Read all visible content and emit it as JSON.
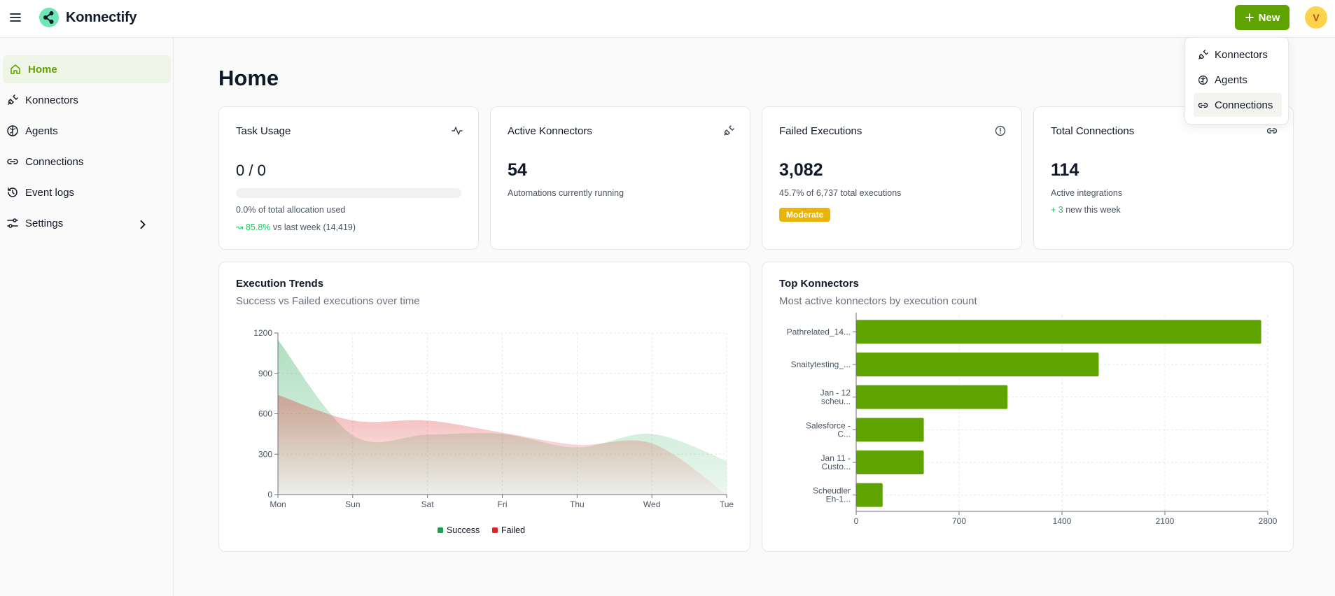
{
  "app": {
    "name": "Konnectify",
    "new_label": "New",
    "avatar_initial": "V"
  },
  "sidebar": {
    "items": [
      {
        "label": "Home",
        "icon": "home-icon"
      },
      {
        "label": "Konnectors",
        "icon": "plug-icon"
      },
      {
        "label": "Agents",
        "icon": "brain-icon"
      },
      {
        "label": "Connections",
        "icon": "link-icon"
      },
      {
        "label": "Event logs",
        "icon": "history-icon"
      },
      {
        "label": "Settings",
        "icon": "settings-icon"
      }
    ]
  },
  "page": {
    "title": "Home"
  },
  "dropdown": {
    "items": [
      "Konnectors",
      "Agents",
      "Connections"
    ]
  },
  "cards": {
    "task_usage": {
      "title": "Task Usage",
      "value": "0 / 0",
      "sub": "0.0% of total allocation used",
      "progress_percent": 0,
      "trend_value": "85.8%",
      "trend_text": "vs last week (14,419)"
    },
    "active_konnectors": {
      "title": "Active Konnectors",
      "value": "54",
      "sub": "Automations currently running"
    },
    "failed_executions": {
      "title": "Failed Executions",
      "value": "3,082",
      "sub": "45.7% of 6,737 total executions",
      "badge": "Moderate"
    },
    "total_connections": {
      "title": "Total Connections",
      "value": "114",
      "sub": "Active integrations",
      "new_prefix": "+ 3",
      "new_text": "new this week"
    }
  },
  "colors": {
    "accent": "#5fa300",
    "success": "#16a34a",
    "failed": "#dc2626",
    "badge": "#eab308"
  },
  "chart_data": [
    {
      "type": "area",
      "title": "Execution Trends",
      "subtitle": "Success vs Failed executions over time",
      "categories": [
        "Mon",
        "Sun",
        "Sat",
        "Fri",
        "Thu",
        "Wed",
        "Tue"
      ],
      "ylim": [
        0,
        1200
      ],
      "yticks": [
        0,
        300,
        600,
        900,
        1200
      ],
      "series": [
        {
          "name": "Success",
          "values": [
            1150,
            440,
            445,
            450,
            350,
            450,
            250
          ]
        },
        {
          "name": "Failed",
          "values": [
            740,
            550,
            550,
            460,
            370,
            380,
            0
          ]
        }
      ],
      "legend": [
        "Success",
        "Failed"
      ]
    },
    {
      "type": "bar",
      "orientation": "horizontal",
      "title": "Top Konnectors",
      "subtitle": "Most active konnectors by execution count",
      "categories": [
        [
          "Pathrelated_14..."
        ],
        [
          "Snaitytesting_..."
        ],
        [
          "Jan - 12",
          "scheu..."
        ],
        [
          "Salesforce -",
          "C..."
        ],
        [
          "Jan 11 -",
          "Custo..."
        ],
        [
          "Scheudler",
          "Eh-1..."
        ]
      ],
      "values": [
        2755,
        1650,
        1030,
        460,
        460,
        180
      ],
      "xlim": [
        0,
        2800
      ],
      "xticks": [
        0,
        700,
        1400,
        2100,
        2800
      ]
    }
  ]
}
